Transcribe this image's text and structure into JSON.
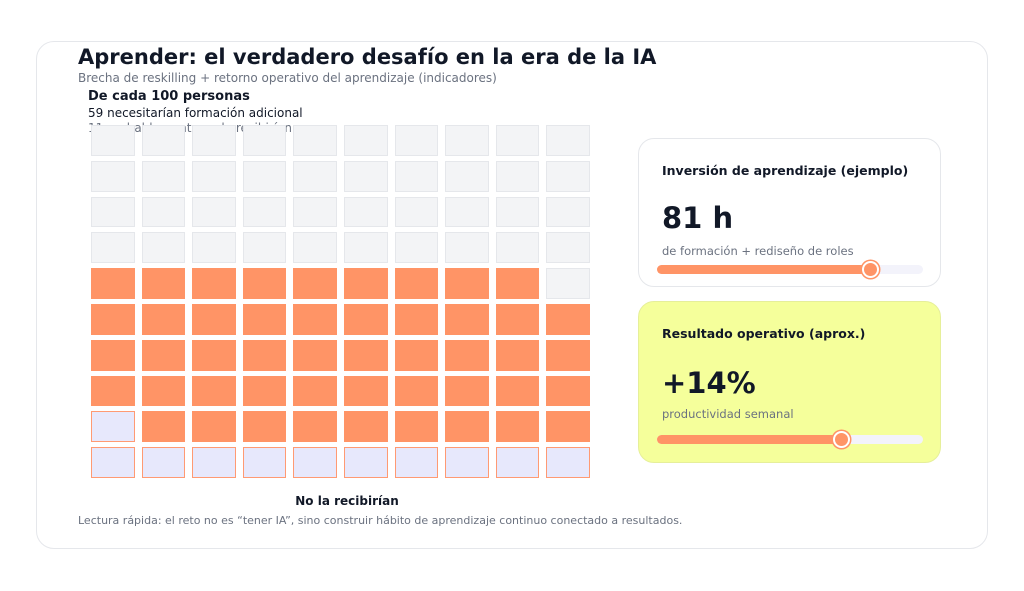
{
  "header": {
    "title": "Aprender: el verdadero desafío en la era de la IA",
    "subtitle": "Brecha de reskilling + retorno operativo del aprendizaje (indicadores)"
  },
  "waffle": {
    "heading": "De cada 100 personas",
    "line1": "59 necesitarían formación adicional",
    "line2": "11 probablemente no la recibirían",
    "total": 100,
    "need_training": 59,
    "not_receive": 11,
    "bottom_label": "No la recibirían",
    "colors": {
      "receive": "#ff9466",
      "not_receive": "#e7e8fc",
      "rest": "#f3f4f6"
    }
  },
  "footnote": "Lectura rápida: el reto no es “tener IA”, sino construir hábito de aprendizaje continuo conectado a resultados.",
  "kpis": [
    {
      "title": "Inversión de aprendizaje (ejemplo)",
      "value": "81 h",
      "sub": "de formación + rediseño de roles",
      "progress": 0.8,
      "bg": "#ffffff"
    },
    {
      "title": "Resultado operativo (aprox.)",
      "value": "+14%",
      "sub": "productividad semanal",
      "progress": 0.69,
      "bg": "#f5ff9b"
    }
  ]
}
